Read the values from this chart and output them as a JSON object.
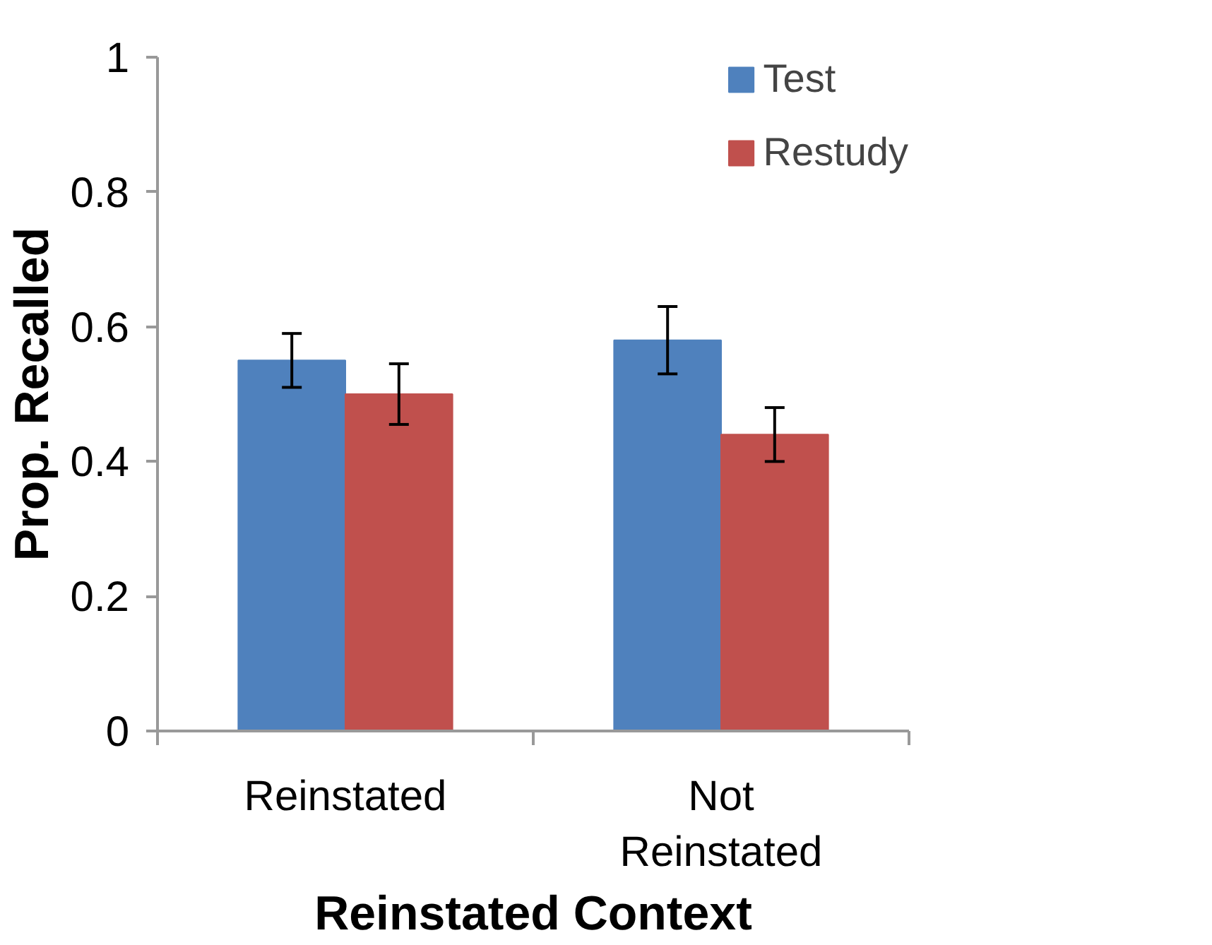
{
  "chart_data": {
    "type": "bar",
    "xlabel": "Reinstated Context",
    "ylabel": "Prop. Recalled",
    "categories": [
      "Reinstated",
      "Not Reinstated"
    ],
    "series": [
      {
        "name": "Test",
        "color": "#4f81bd",
        "values": [
          0.55,
          0.58
        ],
        "errors": [
          0.04,
          0.05
        ]
      },
      {
        "name": "Restudy",
        "color": "#c0504d",
        "values": [
          0.5,
          0.44
        ],
        "errors": [
          0.045,
          0.04
        ]
      }
    ],
    "ylim": [
      0,
      1
    ],
    "yticks": [
      0,
      0.2,
      0.4,
      0.6,
      0.8,
      1
    ],
    "grid": false,
    "legend": "top right"
  }
}
